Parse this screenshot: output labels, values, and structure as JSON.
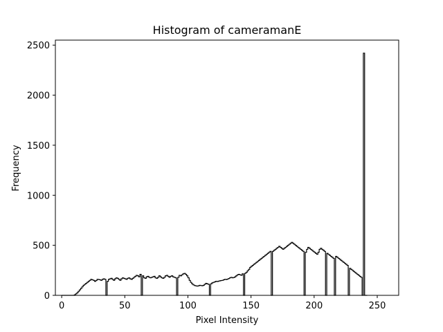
{
  "chart_data": {
    "type": "histogram",
    "title": "Histogram of cameramanE",
    "xlabel": "Pixel Intensity",
    "ylabel": "Frequency",
    "xlim": [
      -5,
      267
    ],
    "ylim": [
      0,
      2550
    ],
    "xticks": [
      0,
      50,
      100,
      150,
      200,
      250
    ],
    "yticks": [
      0,
      500,
      1000,
      1500,
      2000,
      2500
    ],
    "grid": false,
    "legend": "none",
    "line_color": "#000000",
    "bins": {
      "start": 0,
      "width": 1,
      "values": [
        0,
        0,
        0,
        0,
        0,
        0,
        0,
        0,
        0,
        0,
        5,
        15,
        25,
        40,
        55,
        70,
        85,
        100,
        110,
        120,
        130,
        140,
        150,
        160,
        155,
        150,
        140,
        148,
        160,
        158,
        155,
        150,
        160,
        165,
        160,
        0,
        140,
        160,
        165,
        170,
        160,
        150,
        165,
        175,
        170,
        160,
        150,
        165,
        175,
        170,
        165,
        160,
        170,
        175,
        165,
        160,
        170,
        180,
        190,
        200,
        195,
        185,
        210,
        0,
        195,
        175,
        170,
        185,
        190,
        180,
        175,
        180,
        185,
        190,
        175,
        170,
        180,
        195,
        185,
        175,
        170,
        180,
        195,
        200,
        190,
        180,
        190,
        195,
        185,
        180,
        175,
        0,
        180,
        200,
        195,
        205,
        215,
        220,
        210,
        195,
        175,
        150,
        130,
        115,
        105,
        98,
        95,
        92,
        95,
        100,
        98,
        96,
        100,
        110,
        120,
        115,
        110,
        0,
        115,
        125,
        130,
        135,
        140,
        138,
        142,
        145,
        148,
        150,
        155,
        160,
        158,
        162,
        168,
        175,
        180,
        175,
        178,
        185,
        195,
        205,
        210,
        205,
        200,
        215,
        0,
        220,
        230,
        245,
        260,
        280,
        290,
        300,
        310,
        320,
        330,
        340,
        350,
        360,
        370,
        380,
        390,
        400,
        410,
        420,
        430,
        440,
        0,
        440,
        450,
        460,
        470,
        480,
        490,
        480,
        470,
        460,
        470,
        480,
        490,
        500,
        510,
        520,
        530,
        520,
        510,
        500,
        490,
        480,
        470,
        460,
        450,
        440,
        0,
        430,
        460,
        480,
        470,
        460,
        450,
        440,
        430,
        420,
        410,
        430,
        460,
        470,
        460,
        450,
        440,
        0,
        420,
        410,
        400,
        390,
        380,
        370,
        0,
        390,
        380,
        370,
        360,
        350,
        340,
        330,
        320,
        310,
        300,
        0,
        270,
        260,
        250,
        240,
        230,
        220,
        210,
        200,
        190,
        180,
        0,
        2420,
        0,
        0
      ]
    }
  }
}
